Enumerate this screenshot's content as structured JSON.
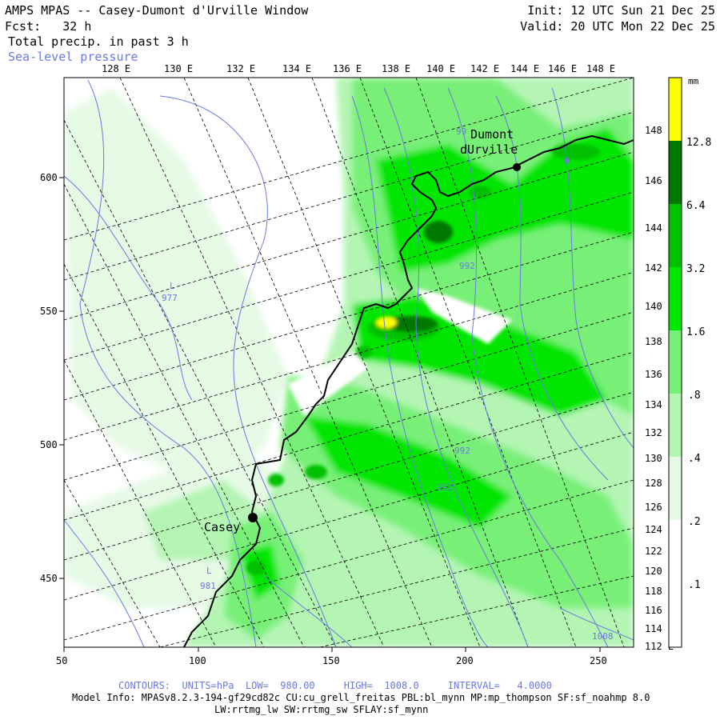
{
  "header": {
    "title": "AMPS MPAS -- Casey-Dumont d'Urville Window",
    "fcst_label": "Fcst:",
    "fcst_value": "32 h",
    "field": "Total precip. in past 3 h",
    "overlay": "Sea-level pressure",
    "init": "Init: 12 UTC Sun 21 Dec 25",
    "valid": "Valid: 20 UTC Mon 22 Dec 25"
  },
  "axes": {
    "x_ticks": [
      "50",
      "100",
      "150",
      "200",
      "250"
    ],
    "y_ticks": [
      "450",
      "500",
      "550",
      "600"
    ],
    "top_lon_labels": [
      "128 E",
      "130 E",
      "132 E",
      "134 E",
      "136 E",
      "138 E",
      "140 E",
      "142 E",
      "144 E",
      "146 E",
      "148 E"
    ],
    "right_lon_labels": [
      "148 E",
      "146 E",
      "144 E",
      "142 E",
      "140 E",
      "138 E",
      "136 E",
      "134 E",
      "132 E",
      "130 E",
      "128 E",
      "126 E",
      "124 E",
      "122 E",
      "120 E",
      "118 E",
      "116 E",
      "114 E",
      "112 E"
    ]
  },
  "stations": [
    {
      "name": "Casey"
    },
    {
      "name": "Dumont dUrville",
      "line1": "Dumont",
      "line2": "dUrville"
    }
  ],
  "pressure_labels": [
    "L",
    "977",
    "L",
    "981",
    "99",
    "992",
    "992",
    "992",
    "1008",
    "0"
  ],
  "colorbar": {
    "unit": "mm",
    "levels": [
      "12.8",
      "6.4",
      "3.2",
      "1.6",
      ".8",
      ".4",
      ".2",
      ".1"
    ],
    "colors": [
      "#ffff00",
      "#007800",
      "#00c000",
      "#00e600",
      "#78f078",
      "#b4f5b4",
      "#e6fae6",
      "#ffffff"
    ]
  },
  "footer": {
    "contours": "CONTOURS:  UNITS=hPa  LOW=  980.00     HIGH=  1008.0     INTERVAL=   4.0000",
    "model_info": "Model Info: MPASv8.2.3-194-gf29cd82c CU:cu_grell_freitas PBL:bl_mynn MP:mp_thompson SF:sf_noahmp 8.0",
    "physics": "LW:rrtmg_lw SW:rrtmg_sw SFLAY:sf_mynn"
  }
}
